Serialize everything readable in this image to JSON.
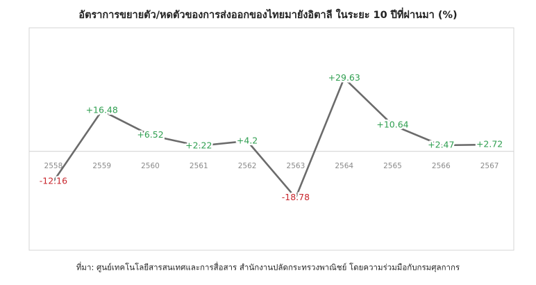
{
  "chart_data": {
    "type": "line",
    "title": "อัตราการขยายตัว/หดตัวของการส่งออกของไทยมายังอิตาลี ในระยะ 10 ปีที่ผ่านมา (%)",
    "source": "ที่มา: ศูนย์เทคโนโลยีสารสนเทศและการสื่อสาร สำนักงานปลัดกระทรวงพาณิชย์ โดยความร่วมมือกับกรมศุลกากร",
    "categories": [
      "2558",
      "2559",
      "2560",
      "2561",
      "2562",
      "2563",
      "2564",
      "2565",
      "2566",
      "2567"
    ],
    "values": [
      -12.16,
      16.48,
      6.52,
      2.22,
      4.2,
      -18.78,
      29.63,
      10.64,
      2.47,
      2.72
    ],
    "value_labels": [
      "-12.16",
      "+16.48",
      "+6.52",
      "+2.22",
      "+4.2",
      "-18.78",
      "+29.63",
      "+10.64",
      "+2.47",
      "+2.72"
    ],
    "color": "#6b6b6b",
    "positive_color": "#2e9e4f",
    "negative_color": "#c8262c",
    "ylim": [
      -40,
      50
    ]
  }
}
